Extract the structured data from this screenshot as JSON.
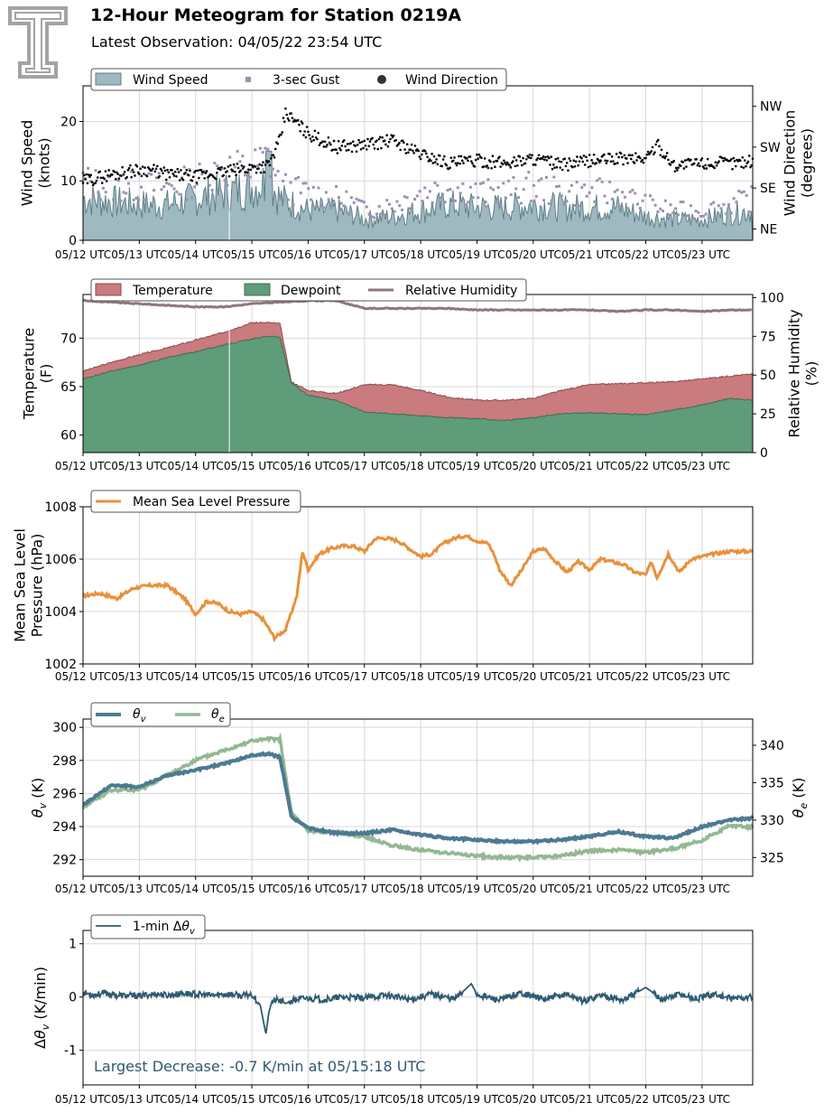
{
  "header": {
    "title": "12-Hour Meteogram for Station 0219A",
    "subtitle": "Latest Observation: 04/05/22 23:54 UTC"
  },
  "logo": {
    "icon": "double-t-logo-icon",
    "glyph": "T"
  },
  "x_axis": {
    "ticks": [
      "05/12 UTC",
      "05/13 UTC",
      "05/14 UTC",
      "05/15 UTC",
      "05/16 UTC",
      "05/17 UTC",
      "05/18 UTC",
      "05/19 UTC",
      "05/20 UTC",
      "05/21 UTC",
      "05/22 UTC",
      "05/23 UTC"
    ],
    "range_days": [
      0,
      11.9
    ]
  },
  "colors": {
    "wind_speed": "#9fb9c1",
    "wind_speed_edge": "#5e7f88",
    "gust": "#9c91b2",
    "direction": "#000000",
    "temperature": "#c97b7d",
    "dewpoint": "#5e9c7a",
    "rh": "#8e7878",
    "pressure": "#e8913b",
    "theta_v": "#4c7a92",
    "theta_e": "#93b893",
    "dtheta": "#2e5a70",
    "annotation": "#2e5a70",
    "grid": "#d8d8d8"
  },
  "chart_data": [
    {
      "type": "area",
      "id": "wind",
      "legend": [
        "Wind Speed",
        "3-sec Gust",
        "Wind Direction"
      ],
      "ylabel": "Wind Speed\n(knots)",
      "ylabel_lines": [
        "Wind Speed",
        "(knots)"
      ],
      "ylim": [
        0,
        26
      ],
      "yticks": [
        0,
        10,
        20
      ],
      "y2label_lines": [
        "Wind Direction",
        "(degrees)"
      ],
      "y2lim": [
        20,
        360
      ],
      "y2ticks": [
        {
          "value": 45,
          "label": "NE"
        },
        {
          "value": 135,
          "label": "SE"
        },
        {
          "value": 225,
          "label": "SW"
        },
        {
          "value": 315,
          "label": "NW"
        }
      ],
      "series": [
        {
          "name": "Wind Speed",
          "x": [
            0,
            0.5,
            1,
            1.5,
            2,
            2.5,
            3,
            3.3,
            3.5,
            4,
            4.5,
            4.9,
            5,
            5.5,
            6,
            6.5,
            7,
            7.5,
            8,
            8.5,
            9,
            9.5,
            10,
            10.5,
            11,
            11.5,
            11.9
          ],
          "values": [
            7,
            6.5,
            6,
            6,
            7,
            8,
            9,
            10,
            7,
            5,
            5,
            4,
            3.5,
            4,
            5,
            6,
            5.5,
            5.5,
            6,
            5.5,
            5.5,
            5.5,
            4,
            3.5,
            3.5,
            4.5,
            5
          ]
        },
        {
          "name": "3-sec Gust",
          "x": [
            0,
            0.5,
            1,
            1.5,
            2,
            2.5,
            3,
            3.3,
            3.5,
            4,
            4.5,
            4.9,
            5,
            5.5,
            6,
            6.5,
            7,
            7.5,
            8,
            8.5,
            9,
            9.5,
            10,
            10.5,
            11,
            11.5,
            11.9
          ],
          "values": [
            10,
            9,
            9,
            9,
            10,
            12,
            12,
            14,
            9,
            8,
            7,
            6,
            5,
            6,
            8,
            9,
            8,
            8,
            9,
            8,
            8,
            8,
            6,
            5,
            5,
            6,
            7
          ]
        },
        {
          "name": "Wind Direction",
          "x": [
            0,
            0.5,
            1,
            1.2,
            1.5,
            2,
            2.5,
            3,
            3.3,
            3.5,
            3.6,
            4,
            4.5,
            5,
            5.5,
            6,
            6.5,
            7,
            7.5,
            8,
            8.5,
            9,
            9.5,
            10,
            10.2,
            10.5,
            11,
            11.5,
            11.9
          ],
          "values": [
            150,
            165,
            175,
            175,
            165,
            160,
            170,
            180,
            185,
            240,
            300,
            255,
            225,
            230,
            240,
            210,
            190,
            195,
            190,
            200,
            185,
            195,
            200,
            200,
            230,
            185,
            190,
            190,
            195
          ]
        }
      ]
    },
    {
      "type": "area",
      "id": "temperature",
      "legend": [
        "Temperature",
        "Dewpoint",
        "Relative Humidity"
      ],
      "ylabel_lines": [
        "Temperature",
        "(F)"
      ],
      "ylim": [
        58.2,
        74.5
      ],
      "yticks": [
        60,
        65,
        70
      ],
      "y2label_lines": [
        "Relative Humidity",
        "(%)"
      ],
      "y2lim": [
        0,
        102
      ],
      "y2ticks": [
        0,
        25,
        50,
        75,
        100
      ],
      "series": [
        {
          "name": "Temperature",
          "x": [
            0,
            0.5,
            1,
            1.5,
            2,
            2.5,
            3,
            3.3,
            3.5,
            3.7,
            4,
            4.5,
            5,
            5.5,
            6,
            6.5,
            7,
            7.5,
            8,
            8.5,
            9,
            9.5,
            10,
            10.5,
            11,
            11.5,
            11.9
          ],
          "values": [
            66.6,
            67.5,
            68.3,
            69,
            69.8,
            70.6,
            71.6,
            71.6,
            71.5,
            65.5,
            64.6,
            64.3,
            65.2,
            65.2,
            64.6,
            63.9,
            63.6,
            63.6,
            63.8,
            64.6,
            65.2,
            65.3,
            65.4,
            65.5,
            65.8,
            66.1,
            66.3
          ]
        },
        {
          "name": "Dewpoint",
          "x": [
            0,
            0.5,
            1,
            1.5,
            2,
            2.5,
            3,
            3.3,
            3.5,
            3.7,
            4,
            4.5,
            5,
            5.5,
            6,
            6.5,
            7,
            7.5,
            8,
            8.5,
            9,
            9.5,
            10,
            10.5,
            11,
            11.5,
            11.9
          ],
          "values": [
            65.8,
            66.6,
            67.2,
            68,
            68.6,
            69.3,
            69.9,
            70.2,
            70.1,
            65.4,
            64.1,
            63.6,
            62.4,
            62.2,
            62,
            61.8,
            61.7,
            61.5,
            61.8,
            62.2,
            62.3,
            62.2,
            62.1,
            62.6,
            63.1,
            63.8,
            63.6
          ]
        },
        {
          "name": "Relative Humidity",
          "x": [
            0,
            0.5,
            1,
            1.5,
            2,
            2.5,
            3,
            3.5,
            4,
            4.5,
            5,
            5.5,
            6,
            6.5,
            7,
            7.5,
            8,
            8.5,
            9,
            9.5,
            10,
            10.5,
            11,
            11.5,
            11.9
          ],
          "values": [
            98,
            97,
            96,
            95,
            94,
            94,
            96,
            97,
            98,
            98,
            93,
            93,
            93,
            93,
            92,
            92,
            92,
            92,
            92,
            91,
            92,
            92,
            91,
            92,
            92
          ]
        }
      ]
    },
    {
      "type": "line",
      "id": "pressure",
      "legend": [
        "Mean Sea Level Pressure"
      ],
      "ylabel_lines": [
        "Mean Sea Level",
        "Pressure (hPa)"
      ],
      "ylim": [
        1002,
        1008
      ],
      "yticks": [
        1002,
        1004,
        1006,
        1008
      ],
      "series": [
        {
          "name": "Mean Sea Level Pressure",
          "x": [
            0,
            0.3,
            0.6,
            0.9,
            1.2,
            1.5,
            1.8,
            2,
            2.2,
            2.4,
            2.6,
            2.8,
            3,
            3.2,
            3.4,
            3.6,
            3.8,
            3.9,
            4,
            4.1,
            4.2,
            4.4,
            4.6,
            4.8,
            5,
            5.2,
            5.4,
            5.6,
            6,
            6.2,
            6.4,
            6.6,
            6.8,
            7,
            7.2,
            7.3,
            7.4,
            7.6,
            7.8,
            8,
            8.2,
            8.4,
            8.6,
            8.8,
            9,
            9.2,
            9.4,
            9.6,
            9.8,
            10,
            10.1,
            10.2,
            10.4,
            10.6,
            10.8,
            11,
            11.2,
            11.5,
            11.9
          ],
          "values": [
            1004.6,
            1004.7,
            1004.5,
            1004.9,
            1005.0,
            1005.0,
            1004.5,
            1003.9,
            1004.4,
            1004.3,
            1004.0,
            1003.9,
            1004.0,
            1003.7,
            1003.0,
            1003.3,
            1004.6,
            1006.3,
            1005.6,
            1005.9,
            1006.2,
            1006.4,
            1006.5,
            1006.5,
            1006.3,
            1006.8,
            1006.8,
            1006.7,
            1006.1,
            1006.2,
            1006.6,
            1006.8,
            1006.9,
            1006.7,
            1006.6,
            1006.2,
            1005.6,
            1005.0,
            1005.6,
            1006.3,
            1006.4,
            1005.9,
            1005.5,
            1005.9,
            1005.6,
            1006.0,
            1005.9,
            1005.8,
            1005.5,
            1005.4,
            1005.9,
            1005.3,
            1006.2,
            1005.5,
            1006.0,
            1006.1,
            1006.2,
            1006.3,
            1006.3
          ]
        }
      ]
    },
    {
      "type": "line",
      "id": "theta",
      "legend": [
        "θv",
        "θe"
      ],
      "ylabel": "θv (K)",
      "ylim": [
        291,
        300.5
      ],
      "yticks": [
        292,
        294,
        296,
        298,
        300
      ],
      "y2label": "θe (K)",
      "y2lim": [
        322.5,
        343.5
      ],
      "y2ticks": [
        325,
        330,
        335,
        340
      ],
      "series": [
        {
          "name": "θv",
          "x": [
            0,
            0.5,
            1,
            1.5,
            2,
            2.5,
            3,
            3.3,
            3.5,
            3.7,
            4,
            4.5,
            5,
            5.5,
            6,
            6.5,
            7,
            7.5,
            8,
            8.5,
            9,
            9.5,
            10,
            10.5,
            11,
            11.5,
            11.9
          ],
          "values": [
            295.3,
            296.5,
            296.4,
            297.1,
            297.4,
            297.8,
            298.3,
            298.4,
            298.2,
            294.6,
            293.9,
            293.6,
            293.6,
            293.8,
            293.5,
            293.3,
            293.2,
            293.1,
            293.1,
            293.2,
            293.4,
            293.7,
            293.4,
            293.3,
            294,
            294.4,
            294.5
          ]
        },
        {
          "name": "θe",
          "x": [
            0,
            0.5,
            1,
            1.5,
            2,
            2.5,
            3,
            3.3,
            3.5,
            3.7,
            4,
            4.5,
            5,
            5.5,
            6,
            6.5,
            7,
            7.5,
            8,
            8.5,
            9,
            9.5,
            10,
            10.5,
            11,
            11.5,
            11.9
          ],
          "values": [
            331.8,
            334.0,
            334.0,
            336.0,
            338.0,
            339.3,
            340.6,
            340.8,
            340.8,
            331.0,
            328.6,
            328.4,
            327.8,
            326.6,
            326.0,
            325.6,
            325.2,
            325.0,
            325.0,
            325.2,
            325.9,
            326.0,
            325.7,
            326.2,
            327.3,
            329.3,
            329.0
          ]
        }
      ]
    },
    {
      "type": "line",
      "id": "dtheta",
      "legend": [
        "1-min Δθv"
      ],
      "ylabel": "Δθv (K/min)",
      "ylim": [
        -1.65,
        1.25
      ],
      "yticks": [
        -1,
        0,
        1
      ],
      "annotation": "Largest Decrease: -0.7 K/min at 05/15:18 UTC",
      "series": [
        {
          "name": "1-min Δθv",
          "x": [
            0,
            0.2,
            0.4,
            0.6,
            1.0,
            1.3,
            1.5,
            1.8,
            2.0,
            2.3,
            2.6,
            2.8,
            3.0,
            3.15,
            3.25,
            3.3,
            3.35,
            3.45,
            3.6,
            3.8,
            4.0,
            4.3,
            4.6,
            5.0,
            5.4,
            5.8,
            6.2,
            6.6,
            6.8,
            6.9,
            7.0,
            7.4,
            7.8,
            8.2,
            8.6,
            8.9,
            9.2,
            9.6,
            10.0,
            10.3,
            10.6,
            10.9,
            11.2,
            11.5,
            11.9
          ],
          "values": [
            0.08,
            0.04,
            0.08,
            0.03,
            0.02,
            0.06,
            0.03,
            0.07,
            0.05,
            0.03,
            0.06,
            0.02,
            0.05,
            -0.15,
            -0.7,
            -0.3,
            -0.1,
            -0.05,
            -0.12,
            -0.04,
            -0.02,
            -0.05,
            0.0,
            -0.02,
            0.04,
            -0.05,
            0.06,
            -0.04,
            0.15,
            0.25,
            0.05,
            -0.06,
            0.08,
            -0.05,
            0.06,
            -0.08,
            0.04,
            -0.06,
            0.18,
            -0.05,
            0.06,
            -0.04,
            0.06,
            -0.03,
            0.0
          ]
        }
      ]
    }
  ]
}
